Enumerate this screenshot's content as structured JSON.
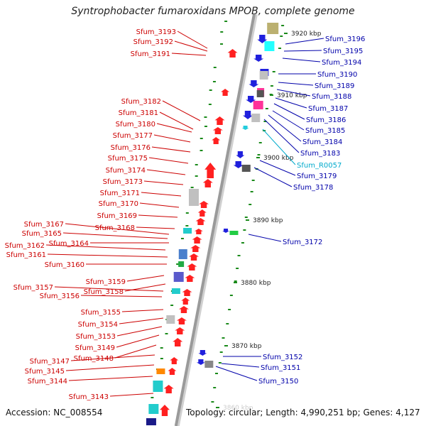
{
  "title": "Syntrophobacter fumaroxidans MPOB, complete genome",
  "footer": {
    "accession": "Accession: NC_008554",
    "topology": "Topology: circular; Length: 4,990,251 bp; Genes: 4,127"
  },
  "colors": {
    "forward_label": "#cc0000",
    "reverse_label": "#0000aa",
    "rna_label": "#00aacc",
    "backbone": "#9a9a9a",
    "tick": "#1a8a1a"
  },
  "scale_labels": [
    "3920 kbp",
    "3910 kbp",
    "3900 kbp",
    "3890 kbp",
    "3880 kbp",
    "3870 kbp",
    "3860 kbp"
  ],
  "forward_genes": [
    "Sfum_3193",
    "Sfum_3192",
    "Sfum_3191",
    "Sfum_3182",
    "Sfum_3181",
    "Sfum_3180",
    "Sfum_3177",
    "Sfum_3176",
    "Sfum_3175",
    "Sfum_3174",
    "Sfum_3173",
    "Sfum_3171",
    "Sfum_3170",
    "Sfum_3169",
    "Sfum_3168",
    "Sfum_3167",
    "Sfum_3165",
    "Sfum_3164",
    "Sfum_3162",
    "Sfum_3161",
    "Sfum_3160",
    "Sfum_3159",
    "Sfum_3158",
    "Sfum_3157",
    "Sfum_3156",
    "Sfum_3155",
    "Sfum_3154",
    "Sfum_3153",
    "Sfum_3149",
    "Sfum_3148",
    "Sfum_3147",
    "Sfum_3145",
    "Sfum_3144",
    "Sfum_3143"
  ],
  "reverse_genes": [
    "Sfum_3196",
    "Sfum_3195",
    "Sfum_3194",
    "Sfum_3190",
    "Sfum_3189",
    "Sfum_3188",
    "Sfum_3187",
    "Sfum_3186",
    "Sfum_3185",
    "Sfum_3184",
    "Sfum_3183",
    "Sfum_R0057",
    "Sfum_3179",
    "Sfum_3178",
    "Sfum_3172",
    "Sfum_3152",
    "Sfum_3151",
    "Sfum_3150"
  ]
}
